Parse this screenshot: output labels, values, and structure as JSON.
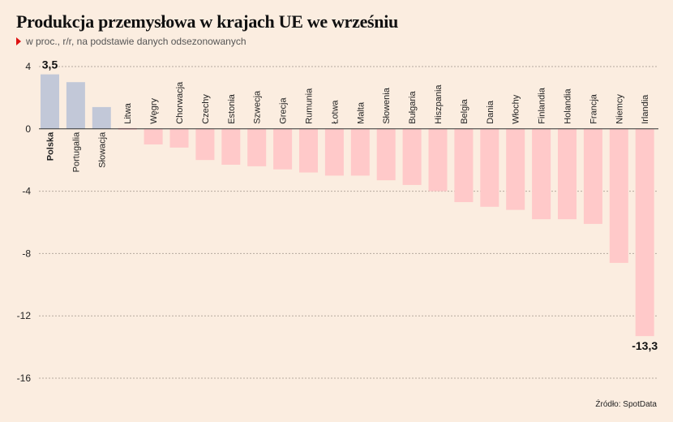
{
  "header": {
    "title": "Produkcja przemysłowa w krajach UE we wrześniu",
    "subtitle": "w proc., r/r, na podstawie danych odsezonowanych"
  },
  "footer": {
    "source": "Źródło: SpotData"
  },
  "colors": {
    "positive": "#c2c8d8",
    "negative": "#ffc9c9",
    "grid": "#b5a99e",
    "zero": "#333333"
  },
  "chart_data": {
    "type": "bar",
    "categories": [
      "Polska",
      "Portugalia",
      "Słowacja",
      "Litwa",
      "Węgry",
      "Chorwacja",
      "Czechy",
      "Estonia",
      "Szwecja",
      "Grecja",
      "Rumunia",
      "Łotwa",
      "Malta",
      "Słowenia",
      "Bułgaria",
      "Hiszpania",
      "Belgia",
      "Dania",
      "Włochy",
      "Finlandia",
      "Holandia",
      "Francja",
      "Niemcy",
      "Irlandia"
    ],
    "values": [
      3.5,
      3.0,
      1.4,
      0.0,
      -1.0,
      -1.2,
      -2.0,
      -2.3,
      -2.4,
      -2.6,
      -2.8,
      -3.0,
      -3.0,
      -3.3,
      -3.6,
      -4.0,
      -4.7,
      -5.0,
      -5.2,
      -5.8,
      -5.8,
      -6.1,
      -8.6,
      -13.3
    ],
    "data_labels": [
      {
        "category": "Polska",
        "text": "3,5"
      },
      {
        "category": "Irlandia",
        "text": "-13,3"
      }
    ],
    "ytick_labels": [
      "4",
      "0",
      "-4",
      "-8",
      "-12",
      "-16"
    ],
    "yticks": [
      4,
      0,
      -4,
      -8,
      -12,
      -16
    ],
    "ylim": [
      -16,
      4
    ],
    "grid": true,
    "xlabel": "",
    "ylabel": ""
  }
}
